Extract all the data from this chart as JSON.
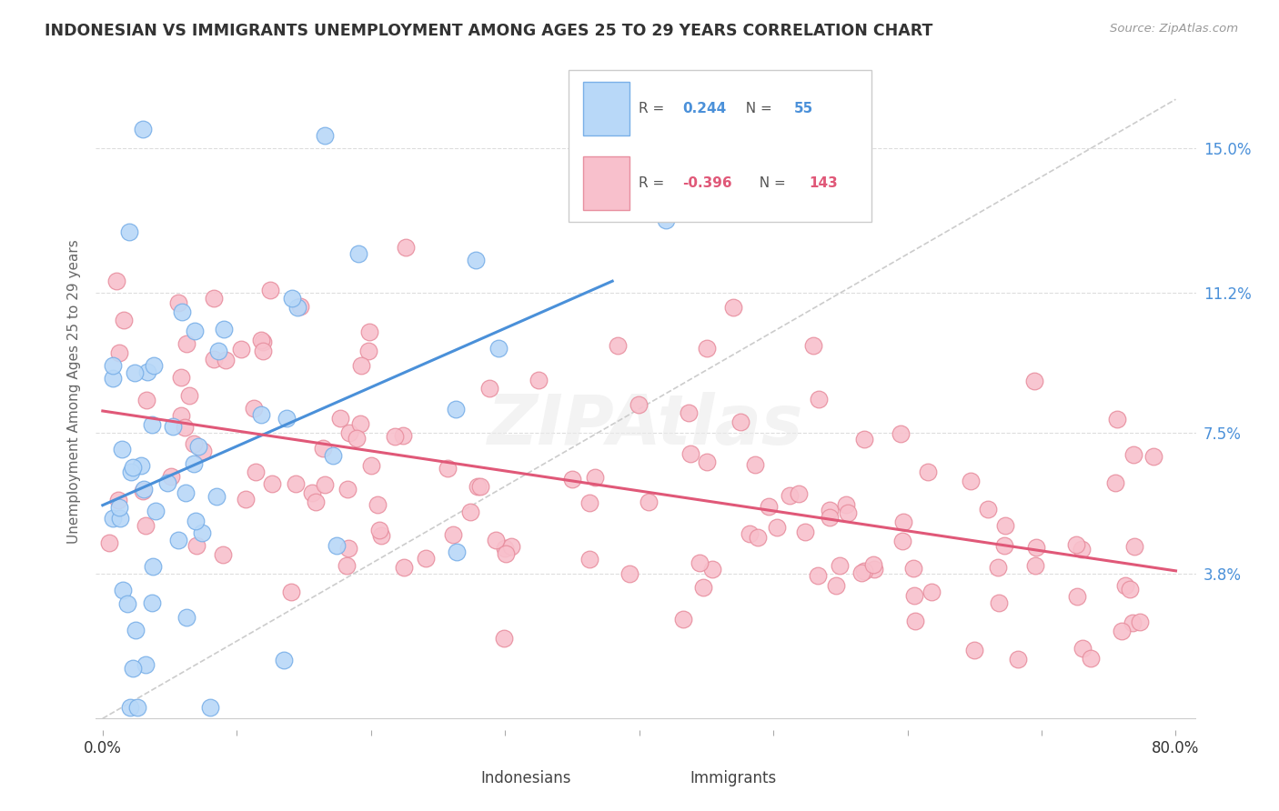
{
  "title": "INDONESIAN VS IMMIGRANTS UNEMPLOYMENT AMONG AGES 25 TO 29 YEARS CORRELATION CHART",
  "source": "Source: ZipAtlas.com",
  "ylabel": "Unemployment Among Ages 25 to 29 years",
  "yticks": [
    "15.0%",
    "11.2%",
    "7.5%",
    "3.8%"
  ],
  "ytick_vals": [
    0.15,
    0.112,
    0.075,
    0.038
  ],
  "xmin": 0.0,
  "xmax": 0.8,
  "ymin": 0.0,
  "ymax": 0.175,
  "color_indonesian_fill": "#b8d8f8",
  "color_indonesian_edge": "#7ab0e8",
  "color_indonesian_line": "#4a90d9",
  "color_immigrant_fill": "#f8c0cc",
  "color_immigrant_edge": "#e890a0",
  "color_immigrant_line": "#e05878",
  "color_dashed": "#cccccc",
  "watermark": "ZIPAtlas"
}
